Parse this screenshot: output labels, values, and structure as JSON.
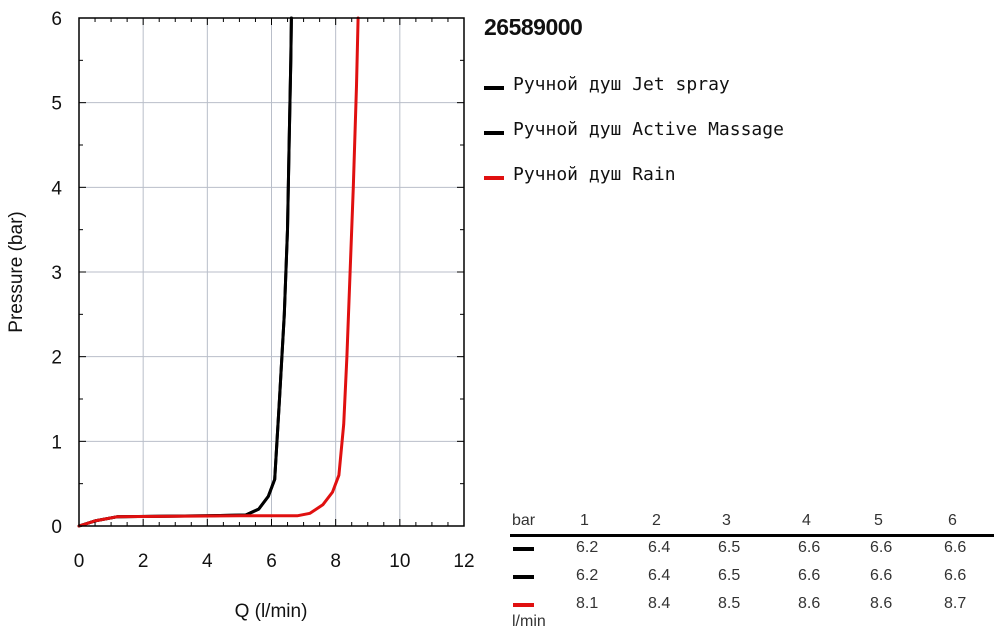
{
  "title": "26589000",
  "legend": [
    {
      "label": "Ручной душ Jet spray",
      "color": "#000000"
    },
    {
      "label": "Ручной душ Active Massage",
      "color": "#000000"
    },
    {
      "label": "Ручной душ Rain",
      "color": "#e01010"
    }
  ],
  "chart_data": {
    "type": "line",
    "xlabel": "Q (l/min)",
    "ylabel": "Pressure (bar)",
    "xlim": [
      0,
      12
    ],
    "ylim": [
      0,
      6
    ],
    "xticks": [
      "0",
      "2",
      "4",
      "6",
      "8",
      "10",
      "12"
    ],
    "yticks": [
      "0",
      "1",
      "2",
      "3",
      "4",
      "5",
      "6"
    ],
    "grid": true,
    "legend_position": "right",
    "series": [
      {
        "name": "Ручной душ Jet spray",
        "color": "#000000",
        "x": [
          0,
          0.5,
          1.2,
          4.0,
          5.2,
          5.6,
          5.9,
          6.1,
          6.25,
          6.4,
          6.5,
          6.55,
          6.6,
          6.62
        ],
        "y": [
          0,
          0.06,
          0.11,
          0.12,
          0.13,
          0.2,
          0.35,
          0.55,
          1.5,
          2.5,
          3.5,
          4.5,
          5.5,
          6.0
        ]
      },
      {
        "name": "Ручной душ Active Massage",
        "color": "#000000",
        "x": [
          0,
          0.5,
          1.2,
          4.0,
          5.2,
          5.6,
          5.9,
          6.1,
          6.25,
          6.4,
          6.5,
          6.55,
          6.6,
          6.62
        ],
        "y": [
          0,
          0.06,
          0.11,
          0.12,
          0.13,
          0.2,
          0.35,
          0.55,
          1.5,
          2.5,
          3.5,
          4.5,
          5.5,
          6.0
        ]
      },
      {
        "name": "Ручной душ Rain",
        "color": "#e01010",
        "x": [
          0,
          0.5,
          1.2,
          5.0,
          6.8,
          7.2,
          7.6,
          7.9,
          8.1,
          8.25,
          8.35,
          8.45,
          8.55,
          8.65,
          8.7
        ],
        "y": [
          0,
          0.06,
          0.11,
          0.12,
          0.12,
          0.15,
          0.25,
          0.4,
          0.6,
          1.2,
          2.0,
          3.0,
          4.0,
          5.2,
          6.0
        ]
      }
    ]
  },
  "table": {
    "header_label": "bar",
    "pressures": [
      "1",
      "2",
      "3",
      "4",
      "5",
      "6"
    ],
    "unit_label": "l/min",
    "rows": [
      {
        "color": "#000000",
        "values": [
          "6.2",
          "6.4",
          "6.5",
          "6.6",
          "6.6",
          "6.6"
        ]
      },
      {
        "color": "#000000",
        "values": [
          "6.2",
          "6.4",
          "6.5",
          "6.6",
          "6.6",
          "6.6"
        ]
      },
      {
        "color": "#e01010",
        "values": [
          "8.1",
          "8.4",
          "8.5",
          "8.6",
          "8.6",
          "8.7"
        ]
      }
    ]
  }
}
